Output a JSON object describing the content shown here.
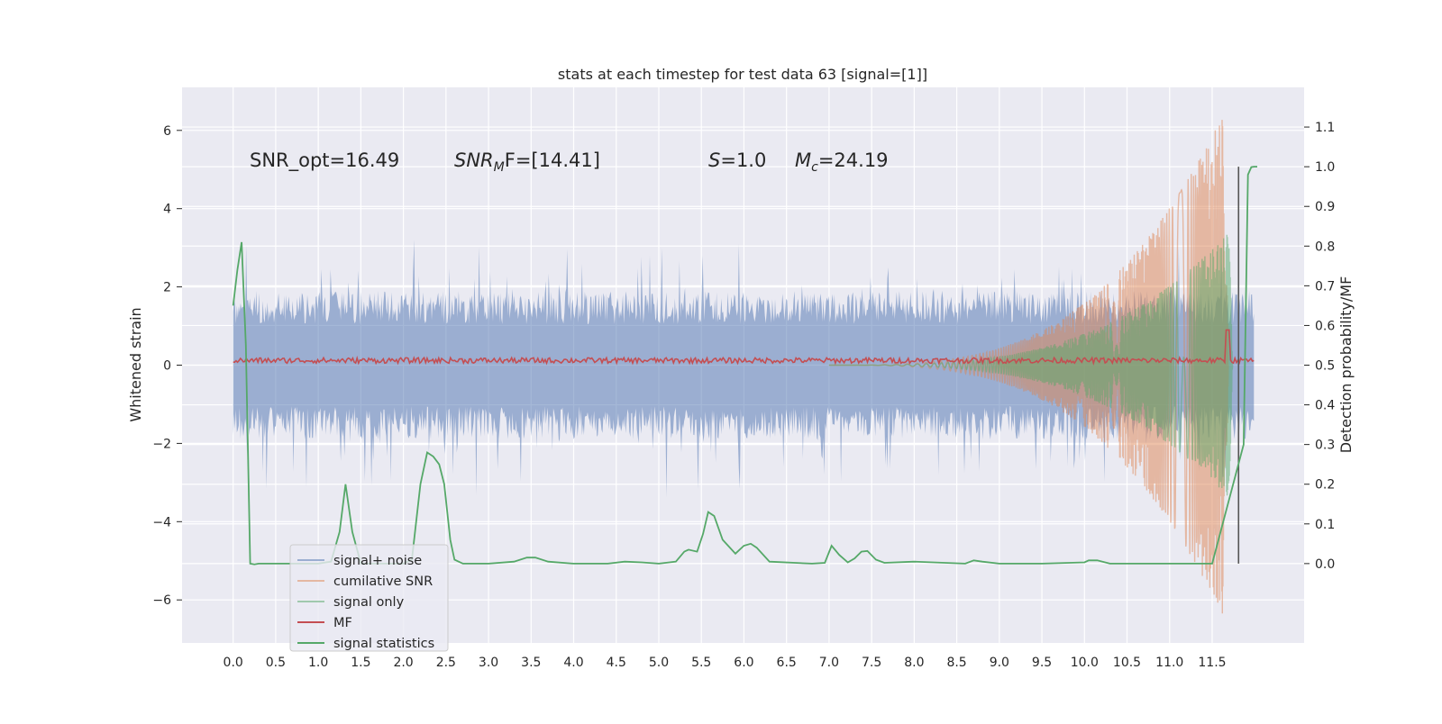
{
  "chart_data": {
    "type": "line",
    "title": "stats at each timestep for test data 63 [signal=[1]]",
    "xlabel": "",
    "ylabel": "Whitened strain",
    "ylabel_right": "Detection probability/MF",
    "xlim": [
      -0.6,
      12.58
    ],
    "ylim": [
      -7.1,
      7.1
    ],
    "ylim_right": [
      -0.2,
      1.2
    ],
    "x_ticks": [
      0.0,
      0.5,
      1.0,
      1.5,
      2.0,
      2.5,
      3.0,
      3.5,
      4.0,
      4.5,
      5.0,
      5.5,
      6.0,
      6.5,
      7.0,
      7.5,
      8.0,
      8.5,
      9.0,
      9.5,
      10.0,
      10.5,
      11.0,
      11.5
    ],
    "x_tick_labels": [
      "0.0",
      "0.5",
      "1.0",
      "1.5",
      "2.0",
      "2.5",
      "3.0",
      "3.5",
      "4.0",
      "4.5",
      "5.0",
      "5.5",
      "6.0",
      "6.5",
      "7.0",
      "7.5",
      "8.0",
      "8.5",
      "9.0",
      "9.5",
      "10.0",
      "10.5",
      "11.0",
      "11.5"
    ],
    "y_ticks": [
      -6,
      -4,
      -2,
      0,
      2,
      4,
      6
    ],
    "y_tick_labels": [
      "−6",
      "−4",
      "−2",
      "0",
      "2",
      "4",
      "6"
    ],
    "y_right_ticks": [
      0.0,
      0.1,
      0.2,
      0.3,
      0.4,
      0.5,
      0.6,
      0.7,
      0.8,
      0.9,
      1.0,
      1.1
    ],
    "y_right_tick_labels": [
      "0.0",
      "0.1",
      "0.2",
      "0.3",
      "0.4",
      "0.5",
      "0.6",
      "0.7",
      "0.8",
      "0.9",
      "1.0",
      "1.1"
    ],
    "grid": true,
    "legend_placement": "lower-left",
    "annotations": {
      "snr_opt": "SNR_opt=16.49",
      "snr_mf_main": "SNR",
      "snr_mf_sub": "M",
      "snr_mf_rest": "F=[14.41]",
      "s_main": "S",
      "s_rest": "=1.0",
      "mc_main": "M",
      "mc_sub": "c",
      "mc_rest": "=24.19"
    },
    "series": [
      {
        "name": "signal+ noise",
        "color": "#4c72b0",
        "alpha": 0.5,
        "kind": "noise_band",
        "x_range": [
          0.0,
          11.99
        ],
        "typical_amplitude": 1.9,
        "peak_amplitude": 4.1
      },
      {
        "name": "cumilative SNR",
        "color": "#dd8452",
        "alpha": 0.5,
        "kind": "chirp",
        "x_start": 7.0,
        "x_peak": 11.65,
        "peak_amplitude": 6.5
      },
      {
        "name": "signal only",
        "color": "#55a868",
        "alpha": 0.5,
        "kind": "chirp",
        "x_start": 7.0,
        "x_peak": 11.7,
        "peak_amplitude": 3.4
      },
      {
        "name": "MF",
        "color": "#c44e52",
        "alpha": 1.0,
        "kind": "flat_noise",
        "level": 0.12,
        "spike_x": 11.68,
        "spike_value": 0.9
      },
      {
        "name": "signal statistics",
        "color": "#55a868",
        "alpha": 1.0,
        "axis": "right",
        "x": [
          0.0,
          0.05,
          0.1,
          0.15,
          0.2,
          0.25,
          0.3,
          0.5,
          0.75,
          1.0,
          1.15,
          1.25,
          1.32,
          1.4,
          1.5,
          1.7,
          2.0,
          2.1,
          2.2,
          2.28,
          2.35,
          2.42,
          2.48,
          2.55,
          2.6,
          2.7,
          3.0,
          3.3,
          3.45,
          3.55,
          3.7,
          4.0,
          4.4,
          4.6,
          4.8,
          5.0,
          5.2,
          5.3,
          5.35,
          5.45,
          5.52,
          5.58,
          5.65,
          5.75,
          5.9,
          6.0,
          6.08,
          6.15,
          6.3,
          6.8,
          6.95,
          7.03,
          7.12,
          7.22,
          7.3,
          7.38,
          7.45,
          7.55,
          7.65,
          8.0,
          8.6,
          8.7,
          8.8,
          9.0,
          9.5,
          10.0,
          10.05,
          10.15,
          10.3,
          11.0,
          11.5,
          11.87,
          11.92,
          11.96,
          11.99,
          12.03
        ],
        "values": [
          0.65,
          0.74,
          0.81,
          0.55,
          0.0,
          -0.002,
          0.0,
          0.0,
          0.0,
          0.0,
          0.005,
          0.08,
          0.2,
          0.08,
          0.0,
          0.0,
          0.0,
          0.01,
          0.2,
          0.28,
          0.27,
          0.25,
          0.2,
          0.06,
          0.01,
          0.0,
          0.0,
          0.005,
          0.015,
          0.015,
          0.005,
          0.0,
          0.0,
          0.005,
          0.003,
          0.0,
          0.005,
          0.03,
          0.035,
          0.03,
          0.075,
          0.13,
          0.12,
          0.06,
          0.025,
          0.045,
          0.05,
          0.04,
          0.005,
          0.0,
          0.002,
          0.045,
          0.022,
          0.003,
          0.013,
          0.03,
          0.032,
          0.01,
          0.002,
          0.005,
          0.0,
          0.008,
          0.005,
          0.0,
          0.0,
          0.003,
          0.008,
          0.008,
          0.0,
          0.0,
          0.0,
          0.3,
          0.98,
          0.999,
          1.0,
          1.0
        ]
      }
    ],
    "reference_lines": [
      {
        "x": 11.81,
        "color": "#555555",
        "y_right_range": [
          0.0,
          1.0
        ]
      }
    ]
  }
}
